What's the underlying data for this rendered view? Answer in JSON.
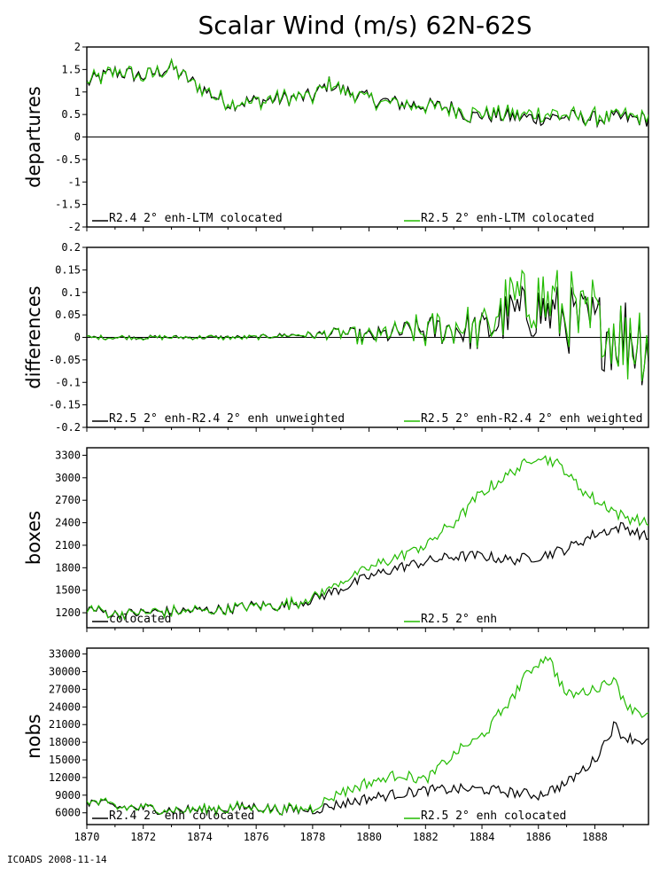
{
  "figure": {
    "title": "Scalar Wind (m/s) 62N-62S",
    "footer": "ICOADS 2008-11-14"
  },
  "colors": {
    "series_a": "#000000",
    "series_b": "#22bb00"
  },
  "chart_data": [
    {
      "type": "line",
      "ylabel": "departures",
      "ylim": [
        -2,
        2
      ],
      "yticks": [
        -2,
        -1.5,
        -1,
        -0.5,
        0,
        0.5,
        1,
        1.5,
        2
      ],
      "xlim": [
        1870,
        1889.9
      ],
      "xticks": [
        1870,
        1872,
        1874,
        1876,
        1878,
        1880,
        1882,
        1884,
        1886,
        1888
      ],
      "zero_line": true,
      "series": [
        {
          "name": "R2.4 2° enh-LTM colocated",
          "keys": [
            [
              1870,
              1.2
            ],
            [
              1871,
              1.45
            ],
            [
              1872,
              1.35
            ],
            [
              1873,
              1.55
            ],
            [
              1874,
              1.1
            ],
            [
              1875,
              0.75
            ],
            [
              1876,
              0.8
            ],
            [
              1877,
              0.85
            ],
            [
              1878,
              0.9
            ],
            [
              1878.6,
              1.2
            ],
            [
              1879,
              1.05
            ],
            [
              1880,
              0.85
            ],
            [
              1881,
              0.75
            ],
            [
              1882,
              0.7
            ],
            [
              1883,
              0.65
            ],
            [
              1883.6,
              0.45
            ],
            [
              1884,
              0.5
            ],
            [
              1885,
              0.45
            ],
            [
              1886,
              0.42
            ],
            [
              1887,
              0.45
            ],
            [
              1888,
              0.4
            ],
            [
              1889,
              0.42
            ],
            [
              1889.9,
              0.4
            ]
          ]
        },
        {
          "name": "R2.5 2° enh-LTM colocated",
          "keys": [
            [
              1870,
              1.2
            ],
            [
              1871,
              1.45
            ],
            [
              1872,
              1.35
            ],
            [
              1873,
              1.55
            ],
            [
              1874,
              1.1
            ],
            [
              1875,
              0.75
            ],
            [
              1876,
              0.8
            ],
            [
              1877,
              0.85
            ],
            [
              1878,
              0.9
            ],
            [
              1878.6,
              1.2
            ],
            [
              1879,
              1.05
            ],
            [
              1880,
              0.85
            ],
            [
              1881,
              0.75
            ],
            [
              1882,
              0.7
            ],
            [
              1883,
              0.65
            ],
            [
              1883.6,
              0.5
            ],
            [
              1884,
              0.55
            ],
            [
              1885,
              0.5
            ],
            [
              1886,
              0.5
            ],
            [
              1887,
              0.48
            ],
            [
              1888,
              0.45
            ],
            [
              1889,
              0.45
            ],
            [
              1889.9,
              0.45
            ]
          ]
        }
      ]
    },
    {
      "type": "line",
      "ylabel": "differences",
      "ylim": [
        -0.2,
        0.2
      ],
      "yticks": [
        -0.2,
        -0.15,
        -0.1,
        -0.05,
        0,
        0.05,
        0.1,
        0.15,
        0.2
      ],
      "xlim": [
        1870,
        1889.9
      ],
      "xticks": [
        1870,
        1872,
        1874,
        1876,
        1878,
        1880,
        1882,
        1884,
        1886,
        1888
      ],
      "zero_line": true,
      "series": [
        {
          "name": "R2.5 2° enh-R2.4 2° enh unweighted",
          "keys": [
            [
              1870,
              0
            ],
            [
              1876,
              0
            ],
            [
              1877,
              0.005
            ],
            [
              1878,
              0.005
            ],
            [
              1879,
              0.01
            ],
            [
              1880,
              0
            ],
            [
              1881,
              0.01
            ],
            [
              1882,
              0.015
            ],
            [
              1883,
              0.02
            ],
            [
              1884,
              0.01
            ],
            [
              1885,
              0.05
            ],
            [
              1886,
              0.06
            ],
            [
              1887,
              0.04
            ],
            [
              1888,
              0.02
            ],
            [
              1889,
              0.01
            ],
            [
              1889.9,
              -0.01
            ]
          ]
        },
        {
          "name": "R2.5 2° enh-R2.4 2° enh weighted",
          "keys": [
            [
              1870,
              0
            ],
            [
              1876,
              0
            ],
            [
              1877,
              0.005
            ],
            [
              1878,
              0.005
            ],
            [
              1879,
              0.01
            ],
            [
              1880,
              0
            ],
            [
              1881,
              0.01
            ],
            [
              1882,
              0.015
            ],
            [
              1883,
              0.03
            ],
            [
              1884,
              0.02
            ],
            [
              1885,
              0.07
            ],
            [
              1886,
              0.09
            ],
            [
              1887,
              0.05
            ],
            [
              1888,
              0.03
            ],
            [
              1889,
              0.01
            ],
            [
              1889.9,
              -0.01
            ]
          ]
        }
      ]
    },
    {
      "type": "line",
      "ylabel": "boxes",
      "ylim": [
        1000,
        3400
      ],
      "yticks": [
        1200,
        1500,
        1800,
        2100,
        2400,
        2700,
        3000,
        3300
      ],
      "xlim": [
        1870,
        1889.9
      ],
      "xticks": [
        1870,
        1872,
        1874,
        1876,
        1878,
        1880,
        1882,
        1884,
        1886,
        1888
      ],
      "zero_line": false,
      "series": [
        {
          "name": "colocated",
          "keys": [
            [
              1870,
              1260
            ],
            [
              1871,
              1180
            ],
            [
              1872,
              1200
            ],
            [
              1873,
              1220
            ],
            [
              1874,
              1230
            ],
            [
              1875,
              1250
            ],
            [
              1876,
              1300
            ],
            [
              1877,
              1290
            ],
            [
              1878,
              1380
            ],
            [
              1879,
              1520
            ],
            [
              1880,
              1680
            ],
            [
              1881,
              1800
            ],
            [
              1882,
              1880
            ],
            [
              1883,
              1950
            ],
            [
              1884,
              1960
            ],
            [
              1885,
              1900
            ],
            [
              1886,
              1950
            ],
            [
              1887,
              2050
            ],
            [
              1888,
              2250
            ],
            [
              1889,
              2350
            ],
            [
              1889.9,
              2200
            ]
          ]
        },
        {
          "name": "R2.5 2° enh",
          "keys": [
            [
              1870,
              1260
            ],
            [
              1871,
              1180
            ],
            [
              1872,
              1200
            ],
            [
              1873,
              1220
            ],
            [
              1874,
              1230
            ],
            [
              1875,
              1250
            ],
            [
              1876,
              1300
            ],
            [
              1877,
              1300
            ],
            [
              1878,
              1400
            ],
            [
              1879,
              1600
            ],
            [
              1880,
              1800
            ],
            [
              1881,
              1950
            ],
            [
              1882,
              2100
            ],
            [
              1883,
              2400
            ],
            [
              1884,
              2800
            ],
            [
              1885,
              3050
            ],
            [
              1886,
              3300
            ],
            [
              1886.8,
              3150
            ],
            [
              1887.5,
              2850
            ],
            [
              1888,
              2700
            ],
            [
              1889,
              2500
            ],
            [
              1889.9,
              2380
            ]
          ]
        }
      ]
    },
    {
      "type": "line",
      "ylabel": "nobs",
      "ylim": [
        4000,
        34000
      ],
      "yticks": [
        6000,
        9000,
        12000,
        15000,
        18000,
        21000,
        24000,
        27000,
        30000,
        33000
      ],
      "xlim": [
        1870,
        1889.9
      ],
      "xticks": [
        1870,
        1872,
        1874,
        1876,
        1878,
        1880,
        1882,
        1884,
        1886,
        1888
      ],
      "xticklabels": [
        "1870",
        "1872",
        "1874",
        "1876",
        "1878",
        "1880",
        "1882",
        "1884",
        "1886",
        "1888"
      ],
      "zero_line": false,
      "series": [
        {
          "name": "R2.4 2° enh colocated",
          "keys": [
            [
              1870,
              8000
            ],
            [
              1871,
              7000
            ],
            [
              1872,
              6800
            ],
            [
              1873,
              6500
            ],
            [
              1874,
              6500
            ],
            [
              1875,
              6800
            ],
            [
              1876,
              7000
            ],
            [
              1877,
              6500
            ],
            [
              1878,
              6500
            ],
            [
              1879,
              7500
            ],
            [
              1880,
              8500
            ],
            [
              1881,
              9200
            ],
            [
              1882,
              9800
            ],
            [
              1883,
              10000
            ],
            [
              1884,
              10000
            ],
            [
              1885,
              9500
            ],
            [
              1886,
              9000
            ],
            [
              1887,
              11000
            ],
            [
              1888,
              15000
            ],
            [
              1888.7,
              21000
            ],
            [
              1889,
              19000
            ],
            [
              1889.9,
              18000
            ]
          ]
        },
        {
          "name": "R2.5 2° enh colocated",
          "keys": [
            [
              1870,
              8000
            ],
            [
              1871,
              7000
            ],
            [
              1872,
              6800
            ],
            [
              1873,
              6500
            ],
            [
              1874,
              6500
            ],
            [
              1875,
              6800
            ],
            [
              1876,
              7000
            ],
            [
              1877,
              6500
            ],
            [
              1878,
              7000
            ],
            [
              1879,
              9500
            ],
            [
              1880,
              11000
            ],
            [
              1881,
              12500
            ],
            [
              1882,
              11500
            ],
            [
              1883,
              16000
            ],
            [
              1884,
              19000
            ],
            [
              1885,
              25000
            ],
            [
              1885.5,
              29000
            ],
            [
              1886.3,
              33000
            ],
            [
              1887,
              26000
            ],
            [
              1888,
              27000
            ],
            [
              1888.6,
              29000
            ],
            [
              1889.2,
              24000
            ],
            [
              1889.9,
              22500
            ]
          ]
        }
      ]
    }
  ]
}
